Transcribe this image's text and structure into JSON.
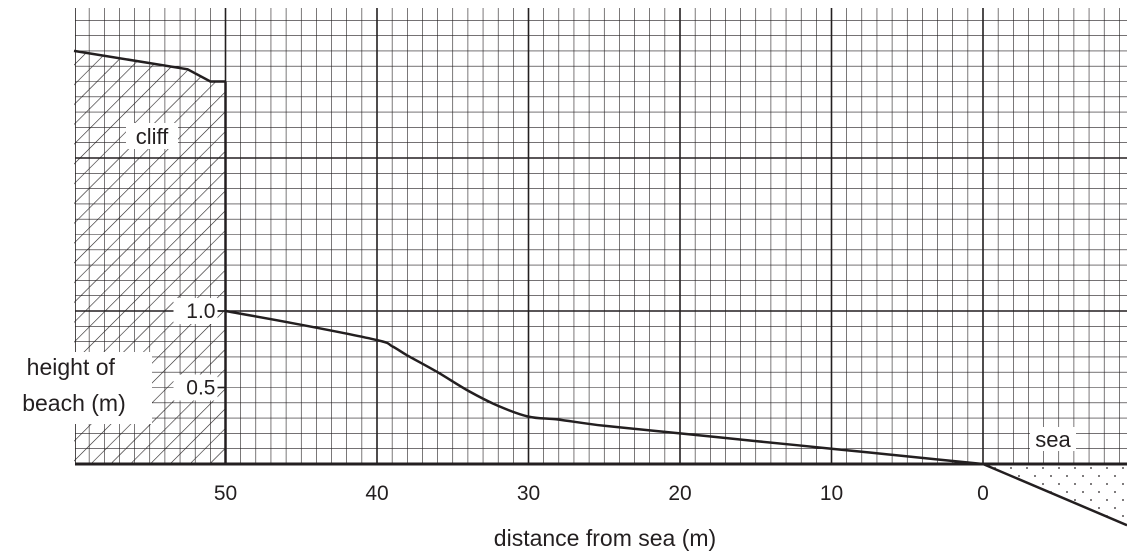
{
  "chart_data": {
    "type": "line",
    "title": "",
    "xlabel": "distance from sea (m)",
    "ylabel_lines": [
      "height of",
      "beach (m)"
    ],
    "x_reversed": true,
    "xlim": [
      60,
      -10
    ],
    "ylim": [
      0,
      3
    ],
    "x_ticks": [
      50,
      40,
      30,
      20,
      10,
      0
    ],
    "x_tick_labels": [
      "50",
      "40",
      "30",
      "20",
      "10",
      "0"
    ],
    "y_ticks": [
      1.0,
      0.5
    ],
    "y_tick_labels": [
      "1.0",
      "0.5"
    ],
    "grid": true,
    "series": [
      {
        "x": [
          50,
          45,
          40,
          39,
          38,
          36,
          34,
          32,
          30,
          28,
          25,
          20,
          15,
          10,
          5,
          0
        ],
        "y": [
          1.0,
          0.91,
          0.81,
          0.77,
          0.71,
          0.6,
          0.48,
          0.38,
          0.31,
          0.29,
          0.25,
          0.2,
          0.15,
          0.1,
          0.05,
          0.0
        ]
      }
    ],
    "cliff_top": {
      "x": [
        60,
        55,
        52.5,
        51,
        50
      ],
      "y": [
        2.7,
        2.62,
        2.58,
        2.5,
        2.5
      ]
    },
    "sea_surface": {
      "x": [
        0,
        -10
      ],
      "y": [
        0,
        -0.4
      ]
    },
    "annotations": {
      "cliff": "cliff",
      "sea": "sea"
    }
  },
  "colors": {
    "ink": "#231f20",
    "background": "#ffffff"
  }
}
